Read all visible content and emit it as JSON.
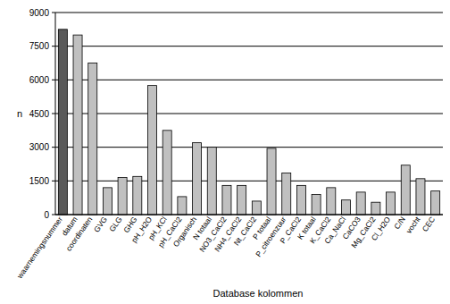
{
  "chart_data": {
    "type": "bar",
    "x_label": "Database kolommen",
    "y_label": "n",
    "categories": [
      "waarnemingsnummer",
      "datum",
      "coordinaten",
      "GVG",
      "GLG",
      "GHG",
      "pH_H2O",
      "pH_KCl",
      "pH_CaCl2",
      "Organisch",
      "N totaal",
      "NO3_CaCl2",
      "NH4_CaCl2",
      "Nt_CaCl2",
      "P totaal",
      "P_citroenzuur",
      "P_CaCl2",
      "K totaal",
      "K_CaCl2",
      "Ca_NaCl",
      "CaCO3",
      "Mg_CaCl2",
      "Cl_H2O",
      "C/N",
      "vocht",
      "CEC"
    ],
    "values": [
      8250,
      8000,
      6750,
      1200,
      1650,
      1700,
      5750,
      3750,
      800,
      3200,
      3000,
      1300,
      1300,
      600,
      2950,
      1850,
      1300,
      900,
      1200,
      650,
      1000,
      550,
      1000,
      2200,
      1600,
      1050
    ],
    "colors": [
      "#595959",
      "#c0c0c0",
      "#c0c0c0",
      "#c0c0c0",
      "#c0c0c0",
      "#c0c0c0",
      "#c0c0c0",
      "#c0c0c0",
      "#c0c0c0",
      "#c0c0c0",
      "#c0c0c0",
      "#c0c0c0",
      "#c0c0c0",
      "#c0c0c0",
      "#c0c0c0",
      "#c0c0c0",
      "#c0c0c0",
      "#c0c0c0",
      "#c0c0c0",
      "#c0c0c0",
      "#c0c0c0",
      "#c0c0c0",
      "#c0c0c0",
      "#c0c0c0",
      "#c0c0c0",
      "#c0c0c0"
    ],
    "ylim": [
      0,
      9000
    ],
    "yticks": [
      0,
      1500,
      3000,
      4500,
      6000,
      7500,
      9000
    ],
    "grid": true
  }
}
